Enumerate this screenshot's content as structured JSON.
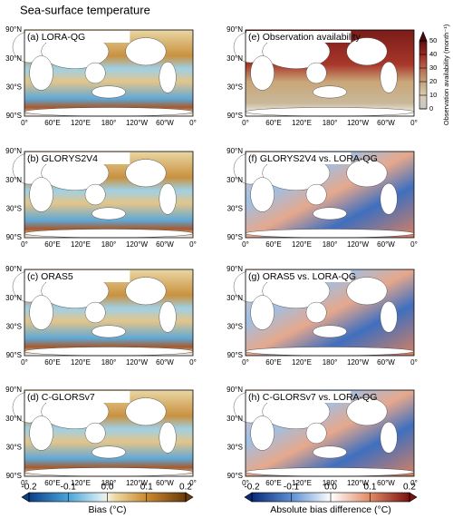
{
  "title": "Sea-surface temperature",
  "panels": [
    {
      "label": "(a) LORA-QG"
    },
    {
      "label": "(b) GLORYS2V4"
    },
    {
      "label": "(c) ORAS5"
    },
    {
      "label": "(d) C-GLORSv7"
    },
    {
      "label": "(e) Observation availability"
    },
    {
      "label": "(f) GLORYS2V4 vs. LORA-QG"
    },
    {
      "label": "(g) ORAS5 vs. LORA-QG"
    },
    {
      "label": "(h) C-GLORSv7 vs. LORA-QG"
    }
  ],
  "lat_labels": [
    "90°N",
    "30°N",
    "30°S",
    "90°S"
  ],
  "lon_labels": [
    "0°",
    "60°E",
    "120°E",
    "180°",
    "120°W",
    "60°W",
    "0°"
  ],
  "colorbars": [
    {
      "label": "Bias (°C)",
      "lim": [
        -0.2,
        0.2
      ],
      "ticks": [
        -0.2,
        -0.1,
        {
          "value": 0,
          "label": "0.0"
        },
        0.1,
        0.2
      ]
    },
    {
      "label": "Absolute bias difference (°C)",
      "lim": [
        -0.2,
        0.2
      ],
      "ticks": [
        -0.2,
        -0.1,
        {
          "value": 0,
          "label": "0.0"
        },
        0.1,
        0.2
      ]
    },
    {
      "label": "Observation availability (month⁻¹)",
      "lim": [
        0,
        50
      ],
      "ticks": [
        0,
        10,
        20,
        30,
        40,
        50
      ]
    }
  ]
}
